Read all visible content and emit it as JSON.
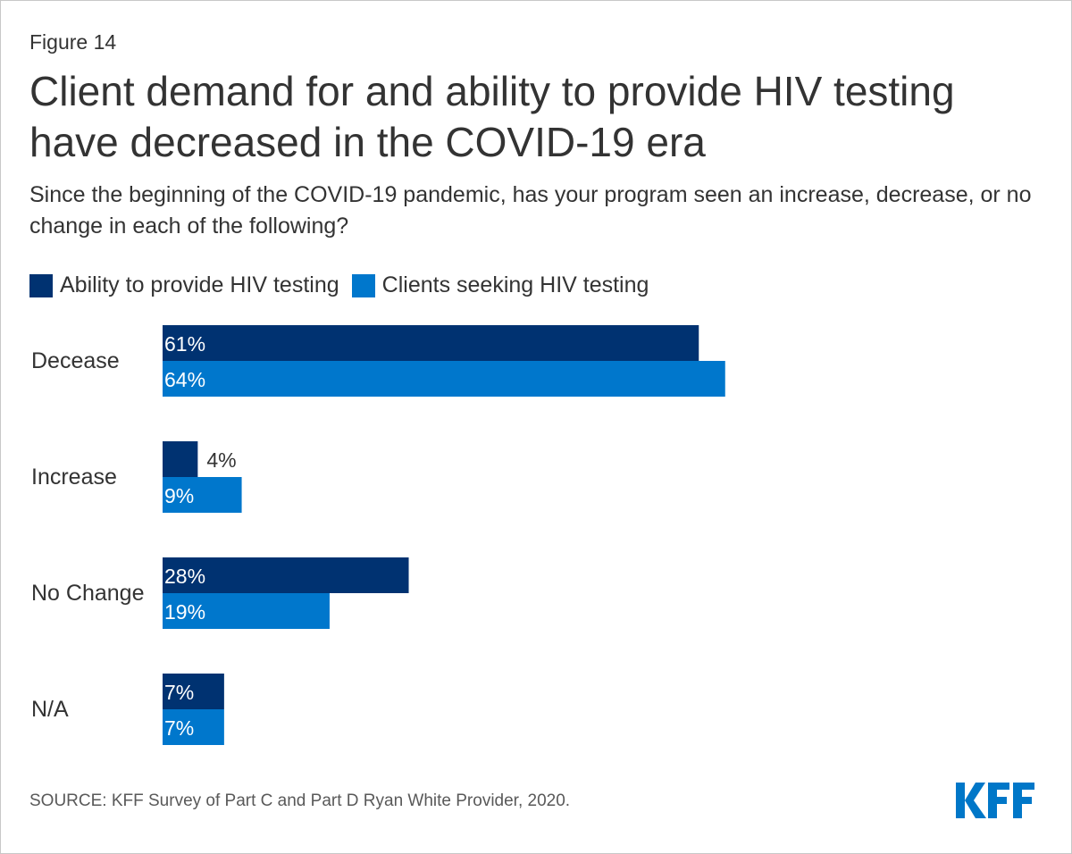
{
  "figure_label": "Figure 14",
  "title": "Client demand for and ability to provide HIV testing have decreased in the COVID-19 era",
  "subtitle": "Since the beginning of the COVID-19 pandemic, has your program seen an increase, decrease, or no change in each of the following?",
  "source": "SOURCE: KFF Survey of Part C and Part D Ryan White Provider, 2020.",
  "logo": "KFF",
  "colors": {
    "ability": "#003271",
    "clients": "#0077CC",
    "logo": "#0077C8"
  },
  "chart_data": {
    "type": "bar",
    "orientation": "horizontal",
    "categories": [
      "Decease",
      "Increase",
      "No Change",
      "N/A"
    ],
    "series": [
      {
        "name": "Ability to provide HIV testing",
        "values": [
          61,
          4,
          28,
          7
        ],
        "labels": [
          "61%",
          "4%",
          "28%",
          "7%"
        ],
        "color": "#003271"
      },
      {
        "name": "Clients seeking HIV testing",
        "values": [
          64,
          9,
          19,
          7
        ],
        "labels": [
          "64%",
          "9%",
          "19%",
          "7%"
        ],
        "color": "#0077CC"
      }
    ],
    "legend": "top-left",
    "grid": false,
    "xlim": [
      0,
      100
    ]
  }
}
